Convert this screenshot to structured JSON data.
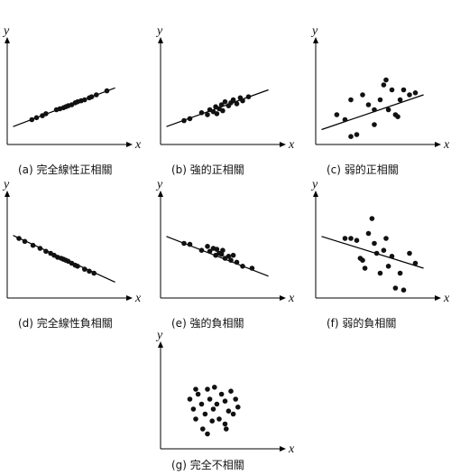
{
  "chart_data": [
    {
      "type": "scatter",
      "title": "(a) 完全線性正相關",
      "x_label": "x",
      "y_label": "y",
      "xlim": [
        0,
        100
      ],
      "ylim": [
        0,
        100
      ],
      "x": [
        21,
        25,
        30,
        33,
        42,
        45,
        48,
        50,
        52,
        55,
        58,
        60,
        63,
        66,
        70,
        72,
        76,
        85
      ],
      "values": [
        25,
        27,
        29,
        31,
        35,
        36,
        37,
        38,
        39,
        40,
        42,
        43,
        44,
        45,
        47,
        48,
        50,
        54
      ],
      "trend": {
        "x": [
          5,
          92
        ],
        "values": [
          18,
          57
        ]
      }
    },
    {
      "type": "scatter",
      "title": "(b) 強的正相關",
      "x_label": "x",
      "y_label": "y",
      "xlim": [
        0,
        100
      ],
      "ylim": [
        0,
        100
      ],
      "x": [
        20,
        25,
        35,
        40,
        42,
        45,
        47,
        48,
        50,
        52,
        53,
        55,
        58,
        60,
        62,
        65,
        68,
        70,
        75
      ],
      "values": [
        24,
        26,
        32,
        30,
        35,
        33,
        38,
        31,
        36,
        40,
        34,
        43,
        39,
        42,
        45,
        41,
        47,
        44,
        48
      ],
      "trend": {
        "x": [
          5,
          92
        ],
        "values": [
          18,
          55
        ]
      }
    },
    {
      "type": "scatter",
      "title": "(c) 弱的正相關",
      "x_label": "x",
      "y_label": "y",
      "xlim": [
        0,
        100
      ],
      "ylim": [
        0,
        100
      ],
      "x": [
        18,
        25,
        30,
        35,
        40,
        45,
        50,
        55,
        58,
        60,
        62,
        65,
        68,
        70,
        72,
        75,
        80,
        85,
        30,
        50
      ],
      "values": [
        30,
        25,
        45,
        10,
        50,
        40,
        20,
        45,
        60,
        65,
        35,
        55,
        30,
        28,
        45,
        55,
        50,
        52,
        8,
        35
      ],
      "trend": {
        "x": [
          5,
          92
        ],
        "values": [
          15,
          50
        ]
      }
    },
    {
      "type": "scatter",
      "title": "(d) 完全線性負相關",
      "x_label": "x",
      "y_label": "y",
      "xlim": [
        0,
        100
      ],
      "ylim": [
        0,
        100
      ],
      "x": [
        10,
        15,
        22,
        28,
        33,
        37,
        40,
        43,
        46,
        48,
        50,
        52,
        55,
        58,
        60,
        66,
        70,
        74
      ],
      "values": [
        60,
        57,
        53,
        50,
        47,
        45,
        43,
        41,
        40,
        39,
        38,
        37,
        35,
        33,
        32,
        29,
        27,
        25
      ],
      "trend": {
        "x": [
          5,
          92
        ],
        "values": [
          63,
          16
        ]
      }
    },
    {
      "type": "scatter",
      "title": "(e) 強的負相關",
      "x_label": "x",
      "y_label": "y",
      "xlim": [
        0,
        100
      ],
      "ylim": [
        0,
        100
      ],
      "x": [
        20,
        25,
        35,
        40,
        42,
        45,
        47,
        48,
        50,
        52,
        53,
        55,
        58,
        60,
        62,
        65,
        70,
        78
      ],
      "values": [
        55,
        54,
        48,
        52,
        47,
        50,
        43,
        49,
        45,
        44,
        48,
        40,
        42,
        38,
        43,
        36,
        32,
        30
      ],
      "trend": {
        "x": [
          5,
          92
        ],
        "values": [
          62,
          22
        ]
      }
    },
    {
      "type": "scatter",
      "title": "(f) 弱的負相關",
      "x_label": "x",
      "y_label": "y",
      "xlim": [
        0,
        100
      ],
      "ylim": [
        0,
        100
      ],
      "x": [
        25,
        30,
        35,
        38,
        40,
        42,
        45,
        48,
        50,
        52,
        55,
        58,
        60,
        62,
        65,
        68,
        72,
        75,
        80,
        85
      ],
      "values": [
        60,
        60,
        58,
        40,
        38,
        30,
        65,
        80,
        55,
        45,
        25,
        48,
        60,
        32,
        42,
        10,
        25,
        8,
        45,
        35
      ],
      "trend": {
        "x": [
          5,
          92
        ],
        "values": [
          62,
          30
        ]
      }
    },
    {
      "type": "scatter",
      "title": "(g) 完全不相關",
      "x_label": "x",
      "y_label": "y",
      "xlim": [
        0,
        100
      ],
      "ylim": [
        0,
        100
      ],
      "x": [
        25,
        28,
        30,
        32,
        35,
        36,
        38,
        40,
        42,
        44,
        45,
        46,
        48,
        50,
        52,
        55,
        56,
        58,
        60,
        62,
        64,
        66,
        30,
        40,
        55
      ],
      "values": [
        50,
        40,
        30,
        55,
        45,
        20,
        35,
        60,
        50,
        28,
        40,
        62,
        45,
        30,
        55,
        48,
        20,
        38,
        58,
        35,
        50,
        42,
        60,
        15,
        25
      ]
    }
  ]
}
